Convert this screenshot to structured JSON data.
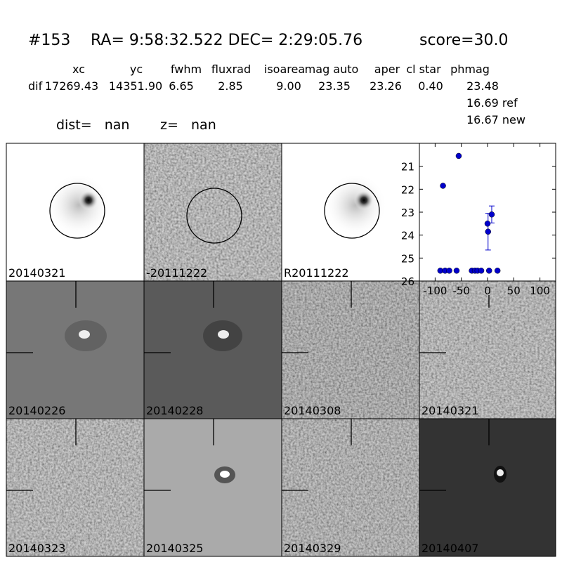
{
  "header": {
    "id": "#153",
    "coords": "RA= 9:58:32.522 DEC= 2:29:05.76",
    "score": "score=30.0"
  },
  "table": {
    "columns": [
      "xc",
      "yc",
      "fwhm",
      "fluxrad",
      "isoarea",
      "mag auto",
      "aper",
      "cl star",
      "phmag"
    ],
    "row_label": "dif",
    "values": [
      "17269.43",
      "14351.90",
      "6.65",
      "2.85",
      "9.00",
      "23.35",
      "23.26",
      "0.40",
      "23.48"
    ],
    "extra": [
      "16.69 ref",
      "16.67 new"
    ]
  },
  "dist": "dist=   nan",
  "z": "z=   nan",
  "panels": [
    {
      "label": "20140321"
    },
    {
      "label": "-20111222"
    },
    {
      "label": "R20111222"
    },
    {
      "label": "20140226"
    },
    {
      "label": "20140228"
    },
    {
      "label": "20140308"
    },
    {
      "label": "20140321",
      "color": "#ff0000"
    },
    {
      "label": "20140323"
    },
    {
      "label": "20140325"
    },
    {
      "label": "20140329"
    },
    {
      "label": "20140407"
    }
  ],
  "chart_data": {
    "type": "scatter",
    "color": "#0000cc",
    "x": [
      -90,
      -81,
      -73,
      -59,
      -85,
      -55,
      -30,
      -24,
      -19,
      -12,
      0,
      1,
      8,
      3,
      19
    ],
    "values": [
      25.55,
      25.55,
      25.55,
      25.55,
      21.85,
      20.55,
      25.55,
      25.55,
      25.55,
      25.55,
      23.5,
      23.85,
      23.1,
      25.55,
      25.55
    ],
    "errors": [
      null,
      null,
      null,
      null,
      null,
      null,
      null,
      null,
      null,
      null,
      null,
      0.8,
      0.37,
      null,
      null
    ],
    "xlim": [
      -130,
      130
    ],
    "xticks": [
      -100,
      -50,
      0,
      50,
      100
    ],
    "ylim": [
      26,
      20
    ],
    "yticks": [
      21,
      22,
      23,
      24,
      25,
      26
    ]
  }
}
